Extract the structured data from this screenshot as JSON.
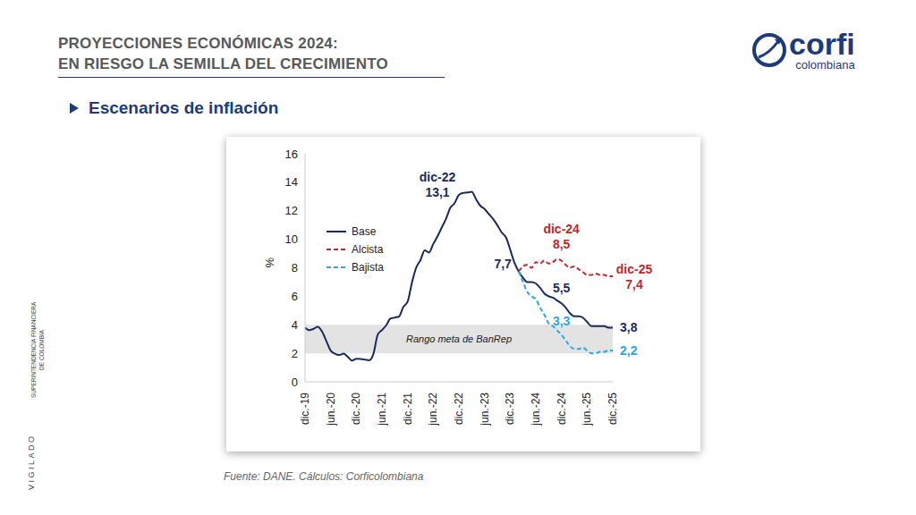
{
  "header": {
    "title_lines": [
      "PROYECCIONES ECONÓMICAS 2024:",
      "EN RIESGO LA SEMILLA DEL CRECIMIENTO"
    ],
    "subtitle": "Escenarios de inflación",
    "logo": {
      "name": "corfi",
      "sub": "colombiana"
    },
    "side_text": [
      "VIGILADO",
      "SUPERINTENDENCIA FINANCIERA",
      "DE COLOMBIA"
    ]
  },
  "chart_data": {
    "type": "line",
    "y_label": "%",
    "source": "Fuente: DANE. Cálculos: Corficolombiana",
    "legend": "upper left",
    "grid": false,
    "ylim": [
      0,
      16
    ],
    "yticks": [
      0,
      2,
      4,
      6,
      8,
      10,
      12,
      14,
      16
    ],
    "categories": [
      "dic.-19",
      null,
      null,
      null,
      null,
      null,
      "jun.-20",
      null,
      null,
      null,
      null,
      null,
      "dic.-20",
      null,
      null,
      null,
      null,
      null,
      "jun.-21",
      null,
      null,
      null,
      null,
      null,
      "dic.-21",
      null,
      null,
      null,
      null,
      null,
      "jun.-22",
      null,
      null,
      null,
      null,
      null,
      "dic.-22",
      null,
      null,
      null,
      null,
      null,
      "jun.-23",
      null,
      null,
      null,
      null,
      null,
      "dic.-23",
      null,
      null,
      null,
      null,
      null,
      "jun.-24",
      null,
      null,
      null,
      null,
      null,
      "dic.-24",
      null,
      null,
      null,
      null,
      null,
      "jun.-25",
      null,
      null,
      null,
      null,
      null,
      "dic.-25"
    ],
    "series": [
      {
        "name": "Base",
        "color": "#1b2a5c",
        "line_style": "solid",
        "values": [
          3.8,
          3.62,
          3.72,
          3.86,
          3.51,
          2.85,
          2.19,
          1.97,
          1.88,
          1.97,
          1.75,
          1.49,
          1.61,
          1.6,
          1.56,
          1.51,
          1.95,
          3.3,
          3.63,
          3.97,
          4.44,
          4.51,
          4.58,
          5.26,
          5.62,
          6.94,
          8.01,
          8.53,
          9.23,
          9.07,
          9.67,
          10.21,
          10.84,
          11.44,
          12.22,
          12.53,
          13.12,
          13.25,
          13.28,
          13.34,
          12.82,
          12.36,
          12.13,
          11.78,
          11.43,
          10.99,
          10.48,
          10.15,
          9.28,
          8.35,
          7.74,
          7.3,
          7.0,
          7.0,
          6.9,
          6.6,
          6.2,
          6.0,
          5.9,
          5.7,
          5.5,
          5.2,
          4.8,
          4.6,
          4.6,
          4.5,
          4.2,
          3.9,
          3.9,
          3.9,
          3.9,
          3.8,
          3.8
        ]
      },
      {
        "name": "Alcista",
        "color": "#c0272d",
        "line_style": "dashed",
        "values": [
          null,
          null,
          null,
          null,
          null,
          null,
          null,
          null,
          null,
          null,
          null,
          null,
          null,
          null,
          null,
          null,
          null,
          null,
          null,
          null,
          null,
          null,
          null,
          null,
          null,
          null,
          null,
          null,
          null,
          null,
          null,
          null,
          null,
          null,
          null,
          null,
          null,
          null,
          null,
          null,
          null,
          null,
          null,
          null,
          null,
          null,
          null,
          null,
          null,
          null,
          7.74,
          8.1,
          8.2,
          8.0,
          8.4,
          8.3,
          8.5,
          8.3,
          8.4,
          8.6,
          8.5,
          8.2,
          8.0,
          8.1,
          7.9,
          7.7,
          7.5,
          7.5,
          7.6,
          7.5,
          7.5,
          7.4,
          7.4
        ]
      },
      {
        "name": "Bajista",
        "color": "#2aa8e0",
        "line_style": "dashed",
        "values": [
          null,
          null,
          null,
          null,
          null,
          null,
          null,
          null,
          null,
          null,
          null,
          null,
          null,
          null,
          null,
          null,
          null,
          null,
          null,
          null,
          null,
          null,
          null,
          null,
          null,
          null,
          null,
          null,
          null,
          null,
          null,
          null,
          null,
          null,
          null,
          null,
          null,
          null,
          null,
          null,
          null,
          null,
          null,
          null,
          null,
          null,
          null,
          null,
          null,
          null,
          7.74,
          7.0,
          6.3,
          6.0,
          5.8,
          5.2,
          4.7,
          4.1,
          3.9,
          3.6,
          3.3,
          2.9,
          2.5,
          2.3,
          2.3,
          2.4,
          2.2,
          2.0,
          2.0,
          2.1,
          2.1,
          2.2,
          2.2
        ]
      }
    ],
    "band": {
      "from": 2,
      "to": 4,
      "label": "Rango meta de BanRep",
      "color": "#e3e3e3"
    },
    "annotations": [
      {
        "series": "Base",
        "index": 36,
        "value": 13.1,
        "label": "13,1",
        "title": "dic-22"
      },
      {
        "series": "Base",
        "index": 50,
        "value": 7.7,
        "label": "7,7"
      },
      {
        "series": "Alcista",
        "index": 60,
        "value": 8.5,
        "label": "8,5",
        "title": "dic-24"
      },
      {
        "series": "Base",
        "index": 60,
        "value": 5.5,
        "label": "5,5"
      },
      {
        "series": "Bajista",
        "index": 60,
        "value": 3.3,
        "label": "3,3"
      },
      {
        "series": "Alcista",
        "index": 72,
        "value": 7.4,
        "label": "7,4",
        "title": "dic-25"
      },
      {
        "series": "Base",
        "index": 72,
        "value": 3.8,
        "label": "3,8"
      },
      {
        "series": "Bajista",
        "index": 72,
        "value": 2.2,
        "label": "2,2"
      }
    ]
  }
}
